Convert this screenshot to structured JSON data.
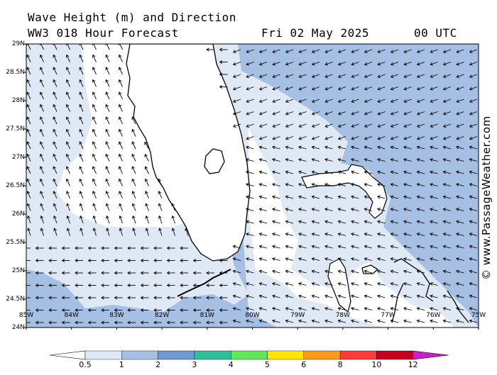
{
  "header": {
    "title": "Wave Height (m) and Direction",
    "model": "WW3 018 Hour Forecast",
    "date": "Fri 02 May 2025",
    "time": "00 UTC"
  },
  "credit": "© www.PassageWeather.com",
  "map": {
    "lon_range": [
      -85,
      -75
    ],
    "lat_range": [
      24,
      29
    ],
    "lat_labels": [
      "29N",
      "28.5N",
      "28N",
      "27.5N",
      "27N",
      "26.5N",
      "26N",
      "25.5N",
      "25N",
      "24.5N",
      "24N"
    ],
    "lon_labels": [
      "85W",
      "84W",
      "83W",
      "82W",
      "81W",
      "80W",
      "79W",
      "78W",
      "77W",
      "76W",
      "75W"
    ],
    "land_color": "#ffffff",
    "coast_color": "#000000"
  },
  "colorbar": {
    "labels": [
      "0.5",
      "1",
      "2",
      "3",
      "4",
      "5",
      "6",
      "8",
      "10",
      "12"
    ],
    "colors": [
      "#ffffff",
      "#dfe8f5",
      "#a6c0e3",
      "#6f99d3",
      "#2fbf9b",
      "#5fe85a",
      "#ffe600",
      "#ff9a1a",
      "#ff3a3a",
      "#c8001f",
      "#cc1fcc"
    ]
  }
}
